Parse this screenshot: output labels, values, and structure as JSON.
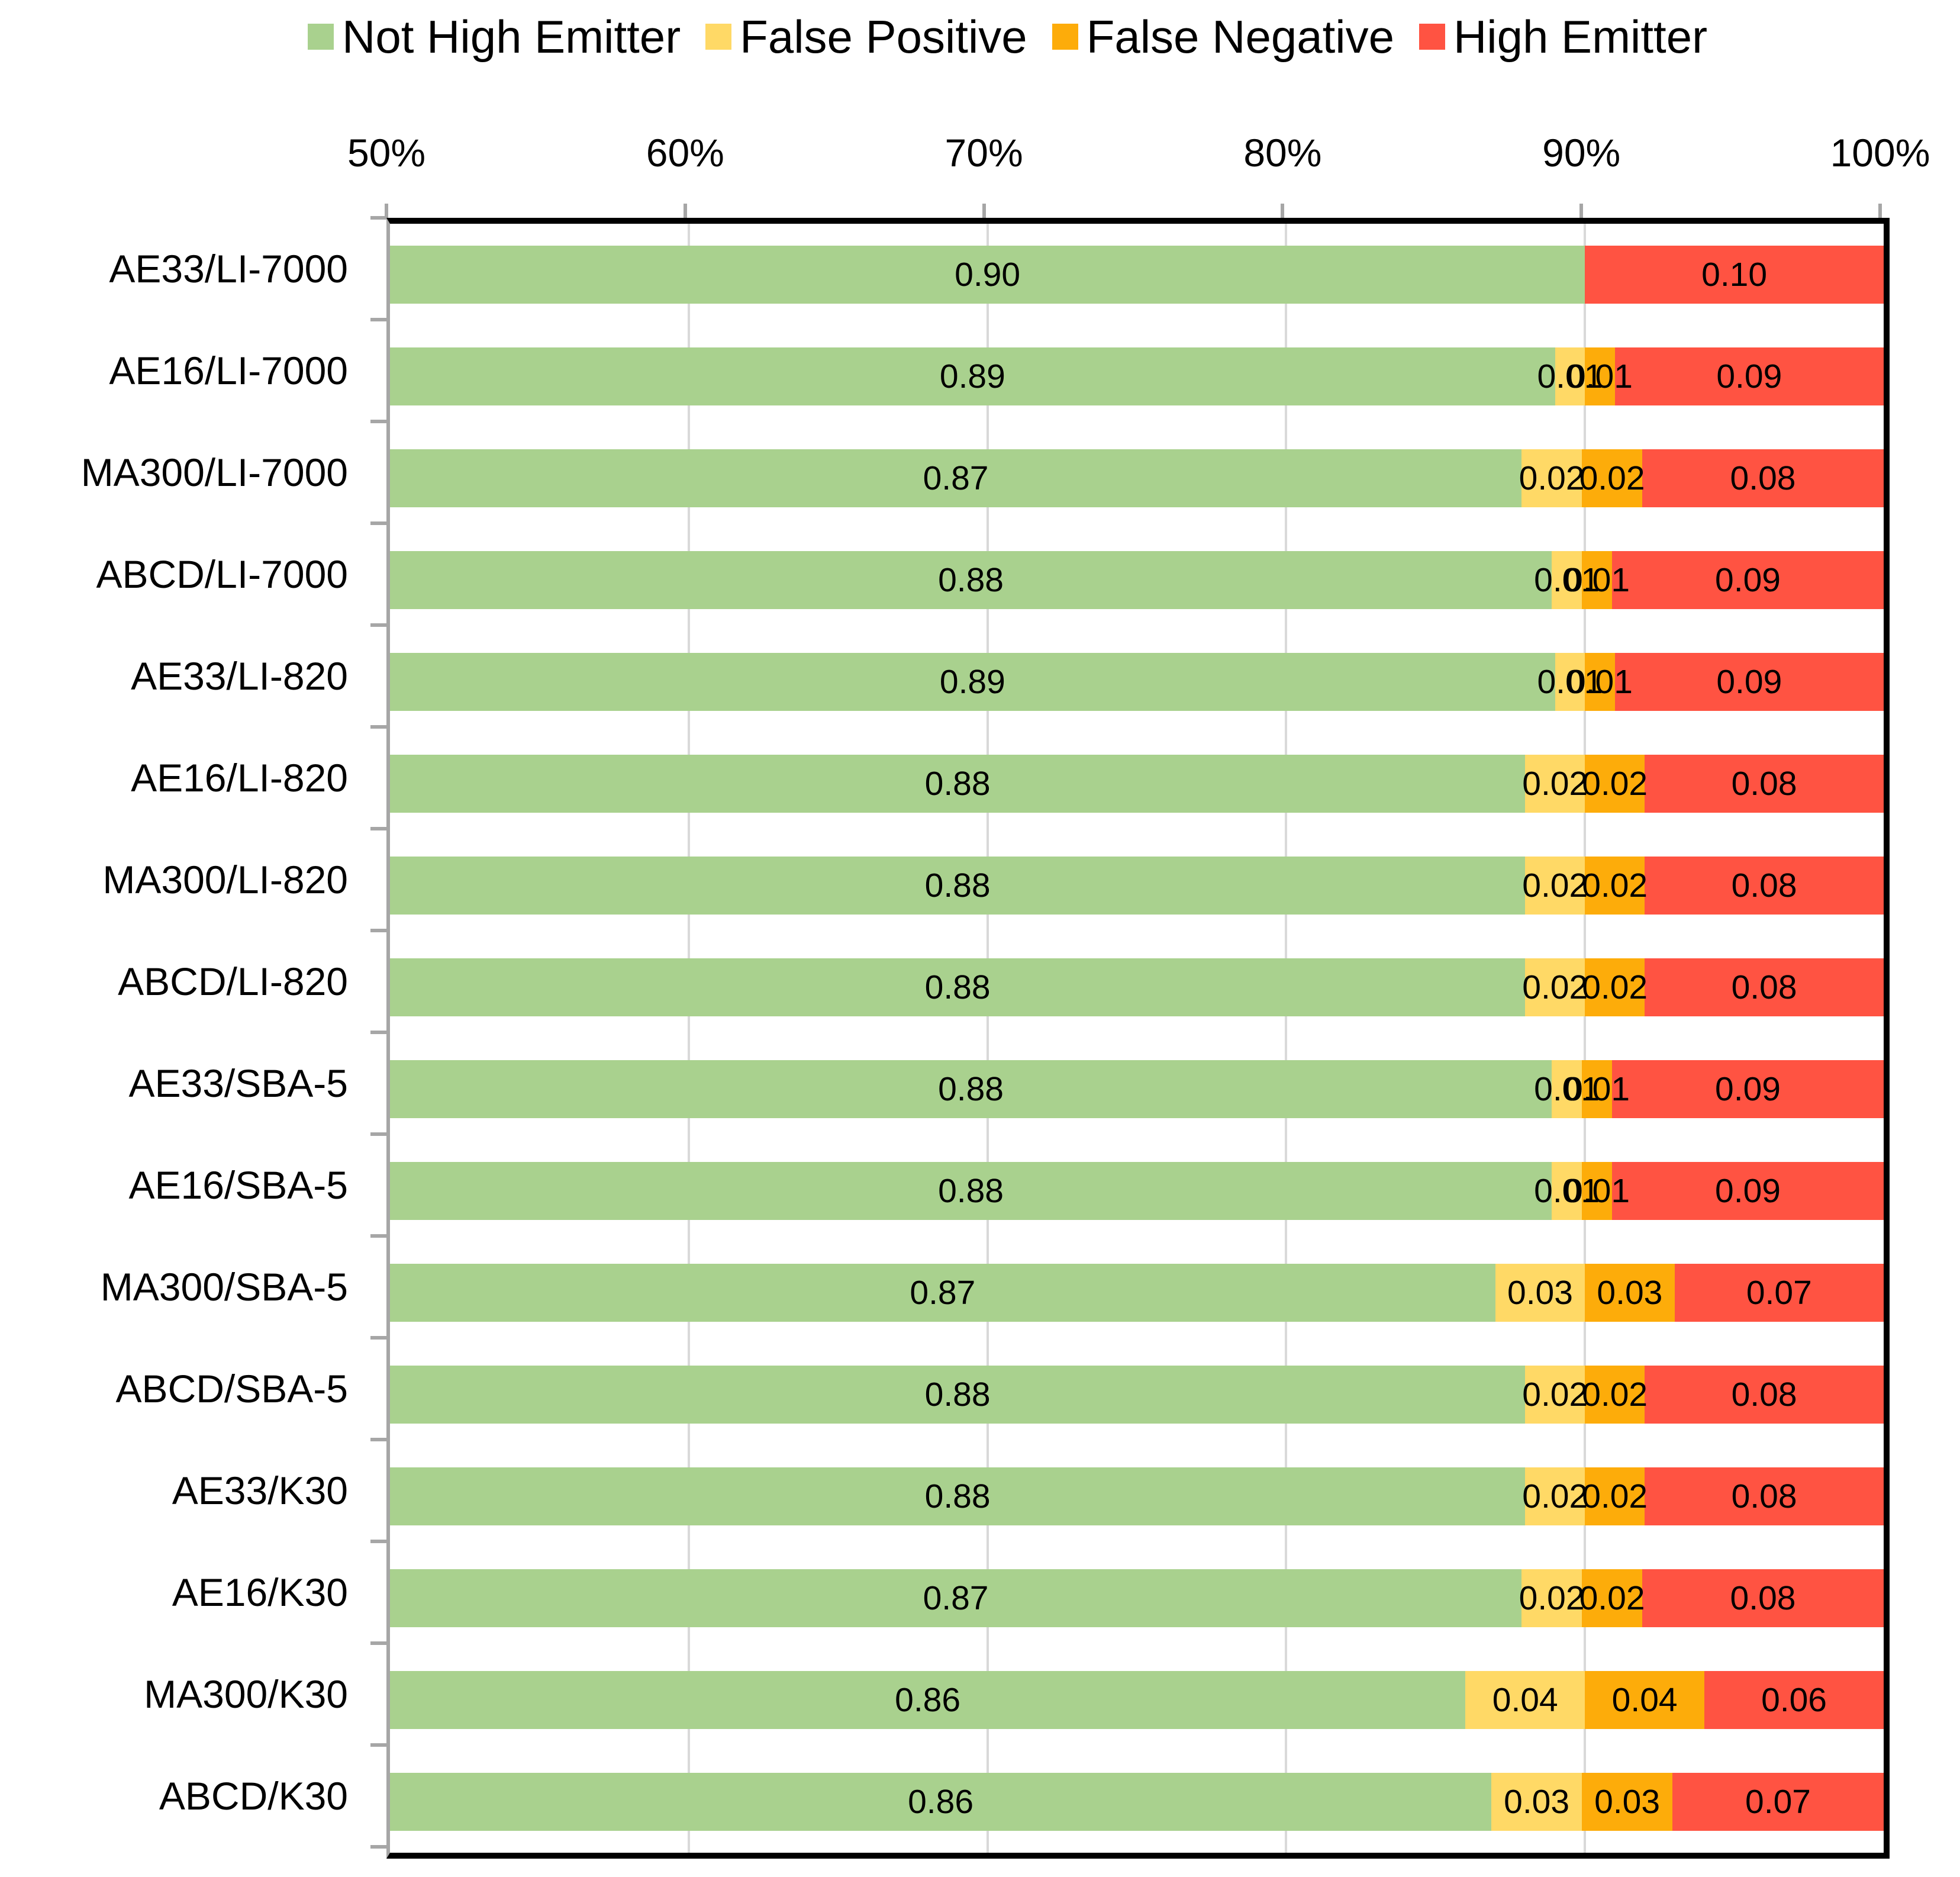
{
  "legend": {
    "items": [
      {
        "label": "Not High Emitter",
        "color": "#A9D18E"
      },
      {
        "label": "False Positive",
        "color": "#FFD966"
      },
      {
        "label": "False Negative",
        "color": "#FDAC0A"
      },
      {
        "label": "High Emitter",
        "color": "#FF5342"
      }
    ]
  },
  "colors": {
    "not_high_emitter": "#A9D18E",
    "false_positive": "#FFD966",
    "false_negative": "#FDAC0A",
    "high_emitter": "#FF5342",
    "gridline": "#D9D9D9",
    "axis_line": "#A6A6A6",
    "border": "#000000",
    "text": "#000000"
  },
  "chart_data": {
    "type": "bar",
    "orientation": "horizontal",
    "stacked": true,
    "title": "",
    "legend_position": "top",
    "grid": "vertical",
    "x_axis": {
      "position": "top",
      "min": 0.5,
      "max": 1.0,
      "tick_labels": [
        "50%",
        "60%",
        "70%",
        "80%",
        "90%",
        "100%"
      ],
      "tick_values": [
        0.5,
        0.6,
        0.7,
        0.8,
        0.9,
        1.0
      ]
    },
    "value_label_format": "0.00",
    "categories": [
      "AE33/LI-7000",
      "AE16/LI-7000",
      "MA300/LI-7000",
      "ABCD/LI-7000",
      "AE33/LI-820",
      "AE16/LI-820",
      "MA300/LI-820",
      "ABCD/LI-820",
      "AE33/SBA-5",
      "AE16/SBA-5",
      "MA300/SBA-5",
      "ABCD/SBA-5",
      "AE33/K30",
      "AE16/K30",
      "MA300/K30",
      "ABCD/K30"
    ],
    "series": [
      {
        "name": "Not High Emitter",
        "color": "#A9D18E",
        "values": [
          0.9,
          0.89,
          0.87,
          0.88,
          0.89,
          0.88,
          0.88,
          0.88,
          0.88,
          0.88,
          0.87,
          0.88,
          0.88,
          0.87,
          0.86,
          0.86
        ]
      },
      {
        "name": "False Positive",
        "color": "#FFD966",
        "values": [
          0,
          0.01,
          0.02,
          0.01,
          0.01,
          0.02,
          0.02,
          0.02,
          0.01,
          0.01,
          0.03,
          0.02,
          0.02,
          0.02,
          0.04,
          0.03
        ]
      },
      {
        "name": "False Negative",
        "color": "#FDAC0A",
        "values": [
          0,
          0.01,
          0.02,
          0.01,
          0.01,
          0.02,
          0.02,
          0.02,
          0.01,
          0.01,
          0.03,
          0.02,
          0.02,
          0.02,
          0.04,
          0.03
        ]
      },
      {
        "name": "High Emitter",
        "color": "#FF5342",
        "values": [
          0.1,
          0.09,
          0.08,
          0.09,
          0.09,
          0.08,
          0.08,
          0.08,
          0.09,
          0.09,
          0.07,
          0.08,
          0.08,
          0.08,
          0.06,
          0.07
        ]
      }
    ]
  }
}
